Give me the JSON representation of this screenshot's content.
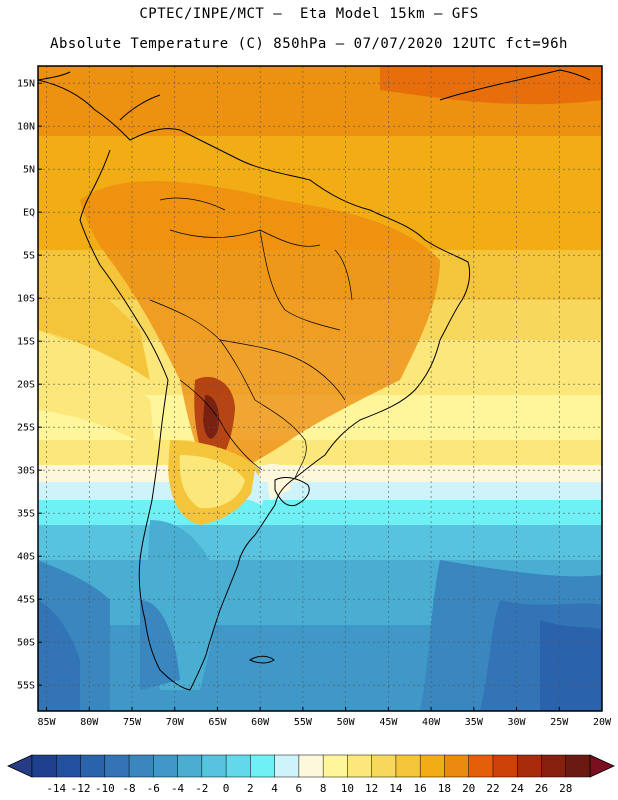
{
  "title": {
    "line1": "CPTEC/INPE/MCT –  Eta Model 15km – GFS",
    "line2": "Absolute Temperature (C) 850hPa – 07/07/2020 12UTC fct=96h"
  },
  "map": {
    "lat_range": [
      -58,
      17
    ],
    "lon_range": [
      -86,
      -20
    ],
    "lat_ticks": [
      "15N",
      "10N",
      "5N",
      "EQ",
      "5S",
      "10S",
      "15S",
      "20S",
      "25S",
      "30S",
      "35S",
      "40S",
      "45S",
      "50S",
      "55S"
    ],
    "lat_values": [
      15,
      10,
      5,
      0,
      -5,
      -10,
      -15,
      -20,
      -25,
      -30,
      -35,
      -40,
      -45,
      -50,
      -55
    ],
    "lon_ticks": [
      "85W",
      "80W",
      "75W",
      "70W",
      "65W",
      "60W",
      "55W",
      "50W",
      "45W",
      "40W",
      "35W",
      "30W",
      "25W",
      "20W"
    ],
    "lon_values": [
      -85,
      -80,
      -75,
      -70,
      -65,
      -60,
      -55,
      -50,
      -45,
      -40,
      -35,
      -30,
      -25,
      -20
    ]
  },
  "colorbar": {
    "labels": [
      "-14",
      "-12",
      "-10",
      "-8",
      "-6",
      "-4",
      "-2",
      "0",
      "2",
      "4",
      "6",
      "8",
      "10",
      "12",
      "14",
      "16",
      "18",
      "20",
      "22",
      "24",
      "26",
      "28"
    ],
    "colors": [
      "#1f3f8f",
      "#23509f",
      "#2a62ab",
      "#3274b6",
      "#3a86bf",
      "#3f98c8",
      "#4aaed3",
      "#57c3df",
      "#63d8ea",
      "#6ff0f5",
      "#cff3fb",
      "#fdf7dc",
      "#fff59a",
      "#fbe77a",
      "#f8d85c",
      "#f4c43b",
      "#f1ad13",
      "#ec8a10",
      "#e45f0a",
      "#cc4209",
      "#a82c0c",
      "#86200e",
      "#6a1a10"
    ],
    "under_color": "#263d86",
    "over_color": "#7a0f1f"
  }
}
